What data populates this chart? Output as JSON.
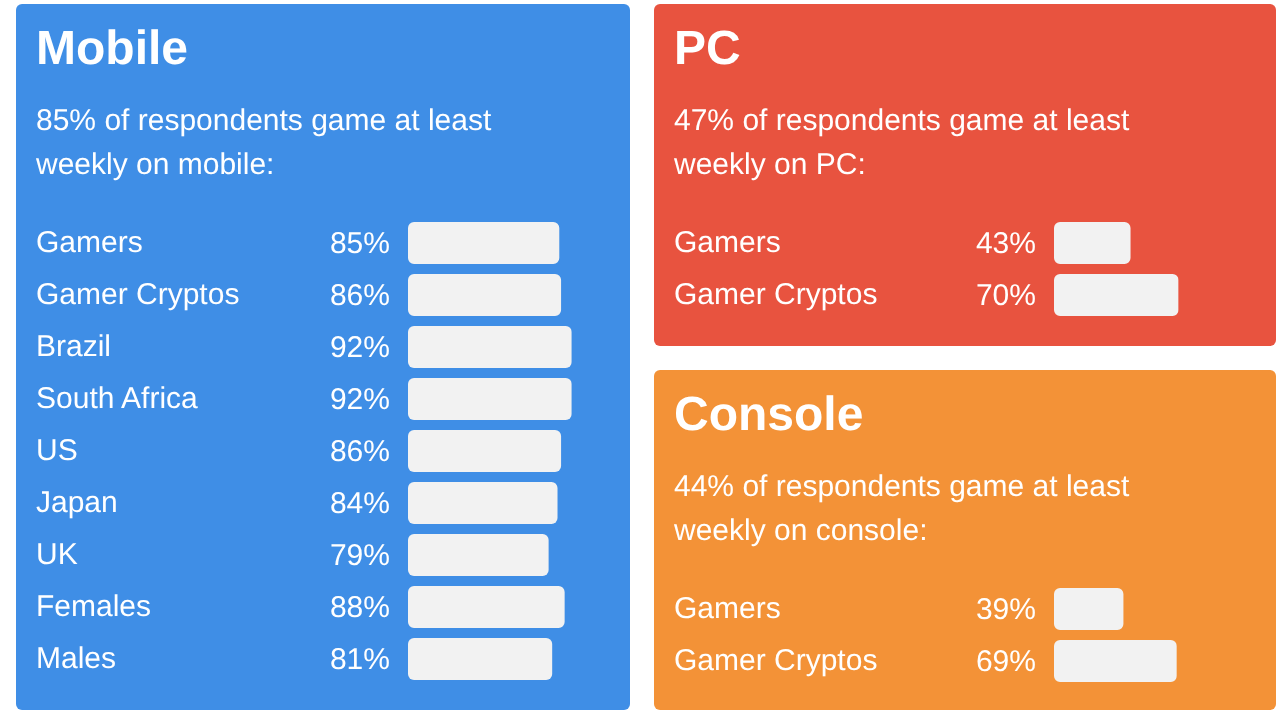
{
  "chart_data": [
    {
      "type": "bar",
      "orientation": "horizontal",
      "title": "Mobile",
      "subtitle": "85% of respondents game at least weekly on mobile:",
      "categories": [
        "Gamers",
        "Gamer Cryptos",
        "Brazil",
        "South Africa",
        "US",
        "Japan",
        "UK",
        "Females",
        "Males"
      ],
      "values": [
        85,
        86,
        92,
        92,
        86,
        84,
        79,
        88,
        81
      ],
      "value_labels": [
        "85%",
        "86%",
        "92%",
        "92%",
        "86%",
        "84%",
        "79%",
        "88%",
        "81%"
      ],
      "color": "#f2f2f2"
    },
    {
      "type": "bar",
      "orientation": "horizontal",
      "title": "PC",
      "subtitle": "47% of respondents game at least weekly on PC:",
      "categories": [
        "Gamers",
        "Gamer Cryptos"
      ],
      "values": [
        43,
        70
      ],
      "value_labels": [
        "43%",
        "70%"
      ],
      "color": "#f2f2f2"
    },
    {
      "type": "bar",
      "orientation": "horizontal",
      "title": "Console",
      "subtitle": "44% of respondents game at least weekly on console:",
      "categories": [
        "Gamers",
        "Gamer Cryptos"
      ],
      "values": [
        39,
        69
      ],
      "value_labels": [
        "39%",
        "69%"
      ],
      "color": "#f2f2f2"
    }
  ]
}
